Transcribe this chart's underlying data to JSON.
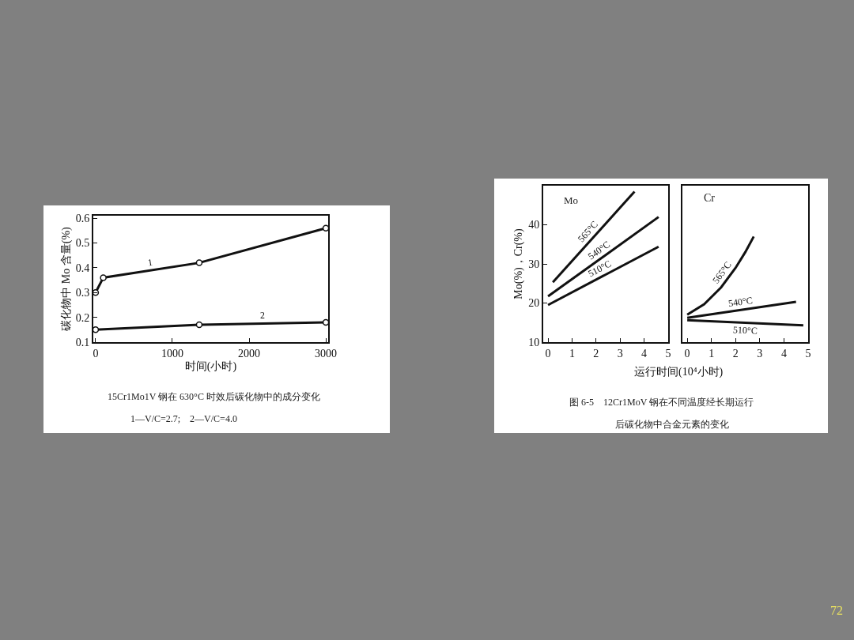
{
  "chart_data": [
    {
      "type": "line",
      "xlabel": "时间(小时)",
      "ylabel": "碳化物中 Mo 含量(%)",
      "xlim": [
        -30,
        3030
      ],
      "xticks": [
        0,
        1000,
        2000,
        3000
      ],
      "ylim": [
        0.1,
        0.61
      ],
      "yticks": [
        0.1,
        0.2,
        0.3,
        0.4,
        0.5,
        0.6
      ],
      "marker": "circle",
      "grid": false,
      "legend": false,
      "series": [
        {
          "name": "1",
          "color": "#111111",
          "x": [
            0,
            100,
            1350,
            3000
          ],
          "values": [
            0.3,
            0.36,
            0.42,
            0.56
          ]
        },
        {
          "name": "2",
          "color": "#111111",
          "x": [
            0,
            1350,
            3000
          ],
          "values": [
            0.15,
            0.17,
            0.18
          ]
        }
      ],
      "annotations": [
        "15Cr1Mo1V 钢在 630°C 时效后碳化物中的成分变化",
        "1—V/C=2.7;　2—V/C=4.0"
      ]
    },
    {
      "type": "line",
      "xlabel": "运行时间(10⁴小时)",
      "ylabel": "Mo(%)，Cr(%)",
      "xlim": [
        -0.2,
        5
      ],
      "xticks": [
        0,
        1,
        2,
        3,
        4,
        5
      ],
      "ylim": [
        10,
        50
      ],
      "yticks": [
        10,
        20,
        30,
        40
      ],
      "grid": false,
      "legend": false,
      "series": [
        {
          "name": "565°C",
          "color": "#111111",
          "x": [
            0.2,
            3.6
          ],
          "values": [
            25.3,
            48.5
          ]
        },
        {
          "name": "540°C",
          "color": "#111111",
          "x": [
            0,
            4.6
          ],
          "values": [
            21.7,
            42
          ]
        },
        {
          "name": "510°C",
          "color": "#111111",
          "x": [
            0,
            4.6
          ],
          "values": [
            19.5,
            34.4
          ]
        }
      ],
      "annotations": [
        "Mo",
        "图 6-5　12Cr1MoV 钢在不同温度经长期运行",
        "后碳化物中合金元素的变化"
      ]
    },
    {
      "type": "line",
      "xlim": [
        -0.2,
        5
      ],
      "xticks": [
        0,
        1,
        2,
        3,
        4,
        5
      ],
      "ylim": [
        10,
        50
      ],
      "tick_labels": "x",
      "grid": false,
      "legend": false,
      "series": [
        {
          "name": "565°C",
          "color": "#111111",
          "x": [
            0,
            0.7,
            1.4,
            2.0,
            2.4,
            2.75
          ],
          "values": [
            17,
            19.7,
            24,
            29,
            33,
            37
          ]
        },
        {
          "name": "540°C",
          "color": "#111111",
          "x": [
            0,
            4.5
          ],
          "values": [
            16.2,
            20.3
          ]
        },
        {
          "name": "510°C",
          "color": "#111111",
          "x": [
            0,
            4.8
          ],
          "values": [
            15.6,
            14.3
          ]
        }
      ],
      "annotations": [
        "Cr",
        "72"
      ]
    }
  ]
}
